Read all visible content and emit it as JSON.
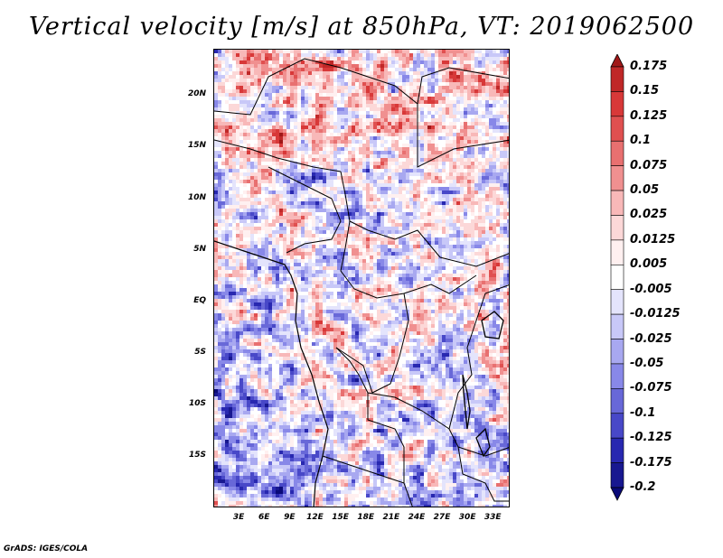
{
  "title": "Vertical velocity [m/s] at 850hPa, VT: 2019062500",
  "credit": "GrADS: IGES/COLA",
  "map": {
    "lat_labels": [
      "20N",
      "15N",
      "10N",
      "5N",
      "EQ",
      "5S",
      "10S",
      "15S"
    ],
    "lat_values": [
      20,
      15,
      10,
      5,
      0,
      -5,
      -10,
      -15
    ],
    "lon_labels": [
      "3E",
      "6E",
      "9E",
      "12E",
      "15E",
      "18E",
      "21E",
      "24E",
      "27E",
      "30E",
      "33E"
    ],
    "lon_values": [
      3,
      6,
      9,
      12,
      15,
      18,
      21,
      24,
      27,
      30,
      33
    ],
    "lon_range": [
      0,
      35
    ],
    "lat_range": [
      -20,
      24.5
    ]
  },
  "colorbar": {
    "levels": [
      "0.175",
      "0.15",
      "0.125",
      "0.1",
      "0.075",
      "0.05",
      "0.025",
      "0.0125",
      "0.005",
      "-0.005",
      "-0.0125",
      "-0.025",
      "-0.05",
      "-0.075",
      "-0.1",
      "-0.125",
      "-0.175",
      "-0.2"
    ],
    "colors": [
      "#a01818",
      "#c02828",
      "#d83838",
      "#e05050",
      "#e87070",
      "#f09090",
      "#f8b8b8",
      "#fcd8d8",
      "#fff0f0",
      "#ffffff",
      "#e4e4fc",
      "#c8c8f8",
      "#a8a8f0",
      "#8888e8",
      "#6868d8",
      "#4848c8",
      "#2828b0",
      "#181890",
      "#0a0a78"
    ]
  }
}
